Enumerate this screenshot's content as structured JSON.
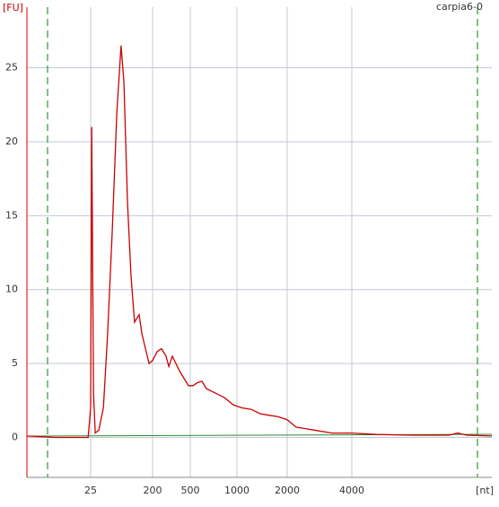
{
  "chart_data": {
    "type": "line",
    "title": "carpia6-0",
    "y_label": "[FU]",
    "x_label": "[nt]",
    "color": "#cc0000",
    "grid": true,
    "x": [
      0,
      11,
      24,
      25,
      28,
      33,
      38,
      48,
      61,
      73,
      86,
      99,
      111,
      119,
      129,
      139,
      149,
      154,
      162,
      170,
      180,
      190,
      200,
      236,
      271,
      307,
      329,
      357,
      386,
      414,
      450,
      486,
      529,
      577,
      625,
      673,
      769,
      865,
      962,
      1107,
      1286,
      1465,
      1643,
      1821,
      2000,
      2278,
      2556,
      2833,
      3389,
      4000,
      5077,
      6615,
      8154,
      8538,
      8923,
      10000
    ],
    "values": [
      0.1,
      0,
      0,
      2,
      21,
      3,
      0.3,
      0.5,
      2,
      7,
      14,
      22,
      26.5,
      24,
      16,
      11,
      7.8,
      8,
      8.3,
      7,
      6,
      5,
      5.2,
      5.8,
      6,
      5.5,
      4.8,
      5.5,
      5,
      4.5,
      4,
      3.5,
      3.5,
      3.7,
      3.8,
      3.3,
      3,
      2.7,
      2.2,
      2,
      1.9,
      1.6,
      1.5,
      1.4,
      1.2,
      0.7,
      0.6,
      0.5,
      0.3,
      0.3,
      0.2,
      0.15,
      0.15,
      0.3,
      0.15,
      0.1
    ],
    "xlim": [
      0,
      10000
    ],
    "xticks": [
      25,
      200,
      500,
      1000,
      2000,
      4000
    ],
    "ylim": [
      -2.7,
      29.1
    ],
    "yticks": [
      0,
      5,
      10,
      15,
      20,
      25
    ]
  }
}
